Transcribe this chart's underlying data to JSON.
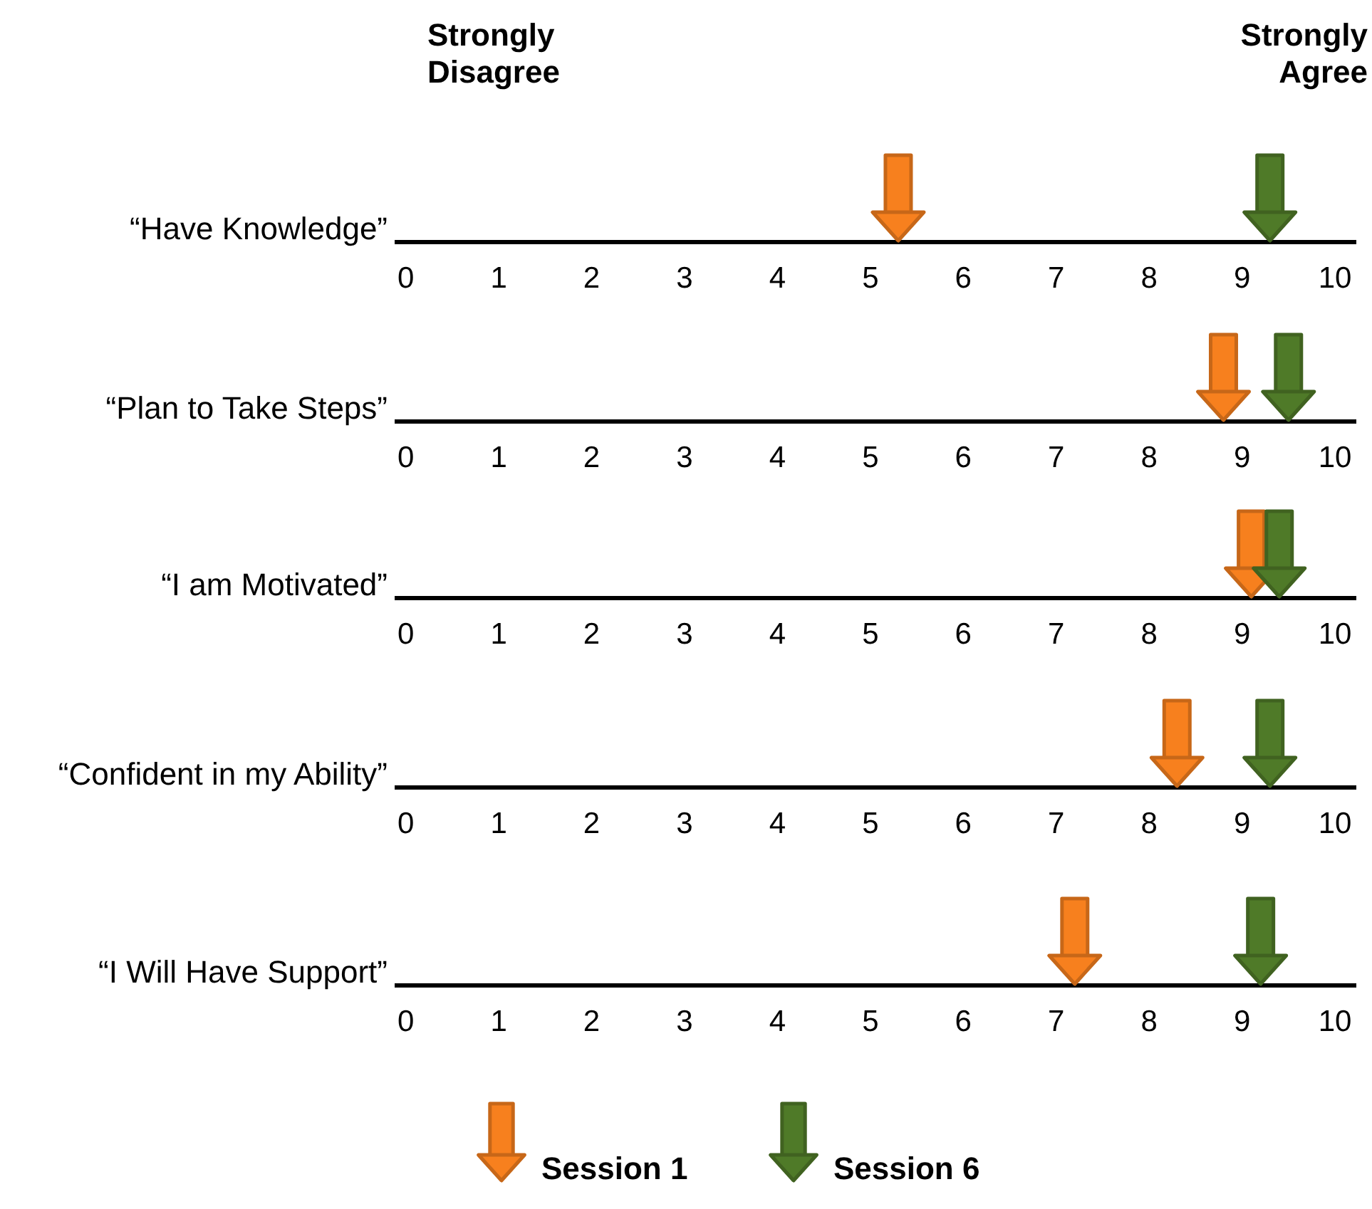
{
  "chart_data": [
    {
      "type": "scatter",
      "orientation": "horizontal",
      "marker": "triangle",
      "categories": [
        "“Have Knowledge”"
      ],
      "series": [
        {
          "color": "#f7801e",
          "values": [
            5.3
          ]
        },
        {
          "color": "#4f7a28",
          "values": [
            9.3
          ]
        }
      ],
      "xlim": [
        -0.12,
        10.23
      ],
      "xticks": [
        0,
        1,
        2,
        3,
        4,
        5,
        6,
        7,
        8,
        9,
        10
      ],
      "annotations": [
        "Strongly Disagree",
        "Strongly Agree"
      ]
    },
    {
      "type": "scatter",
      "orientation": "horizontal",
      "marker": "triangle",
      "categories": [
        "“Plan to Take Steps”"
      ],
      "series": [
        {
          "color": "#f7801e",
          "values": [
            8.8
          ]
        },
        {
          "color": "#4f7a28",
          "values": [
            9.5
          ]
        }
      ],
      "xlim": [
        -0.12,
        10.23
      ],
      "xticks": [
        0,
        1,
        2,
        3,
        4,
        5,
        6,
        7,
        8,
        9,
        10
      ]
    },
    {
      "type": "scatter",
      "orientation": "horizontal",
      "marker": "triangle",
      "categories": [
        "“I am Motivated”"
      ],
      "series": [
        {
          "color": "#f7801e",
          "values": [
            9.1
          ]
        },
        {
          "color": "#4f7a28",
          "values": [
            9.4
          ]
        }
      ],
      "xlim": [
        -0.12,
        10.23
      ],
      "xticks": [
        0,
        1,
        2,
        3,
        4,
        5,
        6,
        7,
        8,
        9,
        10
      ]
    },
    {
      "type": "scatter",
      "orientation": "horizontal",
      "marker": "triangle",
      "categories": [
        "“Confident in my Ability”"
      ],
      "series": [
        {
          "color": "#f7801e",
          "values": [
            8.3
          ]
        },
        {
          "color": "#4f7a28",
          "values": [
            9.3
          ]
        }
      ],
      "xlim": [
        -0.12,
        10.23
      ],
      "xticks": [
        0,
        1,
        2,
        3,
        4,
        5,
        6,
        7,
        8,
        9,
        10
      ]
    },
    {
      "type": "scatter",
      "orientation": "horizontal",
      "marker": "triangle",
      "categories": [
        "“I Will Have Support”"
      ],
      "series": [
        {
          "name": "Session 1",
          "color": "#f7801e",
          "values": [
            7.2
          ]
        },
        {
          "name": "Session 6",
          "color": "#4f7a28",
          "values": [
            9.2
          ]
        }
      ],
      "xlim": [
        -0.12,
        10.23
      ],
      "xticks": [
        0,
        1,
        2,
        3,
        4,
        5,
        6,
        7,
        8,
        9,
        10
      ],
      "legend": "bottom"
    }
  ]
}
